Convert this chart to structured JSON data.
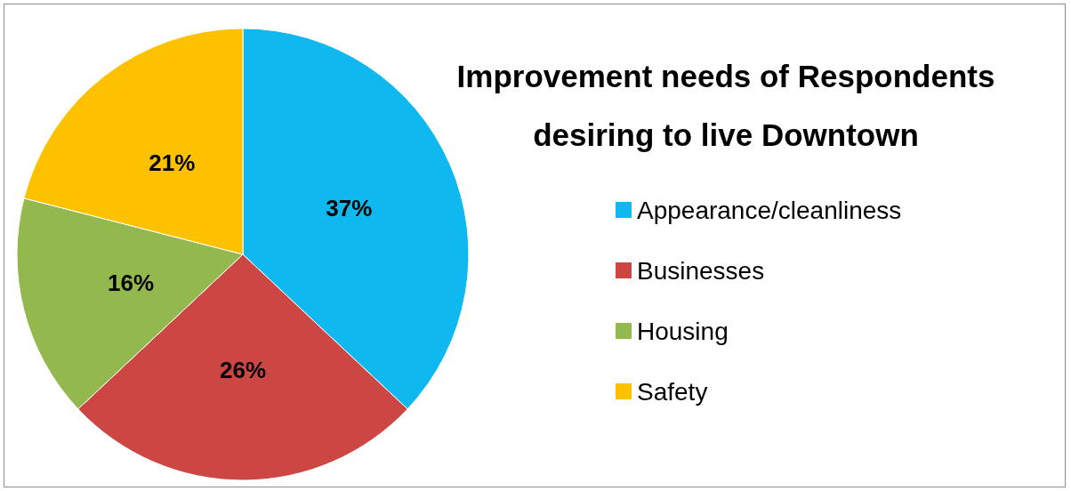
{
  "chart_data": {
    "type": "pie",
    "title": "Improvement needs of Respondents\ndesiring to live Downtown",
    "categories": [
      "Appearance/cleanliness",
      "Businesses",
      "Housing",
      "Safety"
    ],
    "values": [
      37,
      26,
      16,
      21
    ],
    "value_labels": [
      "37%",
      "26%",
      "16%",
      "21%"
    ],
    "colors": [
      "#0fb8ee",
      "#cc4744",
      "#93b94e",
      "#fec100"
    ],
    "legend": "right"
  }
}
